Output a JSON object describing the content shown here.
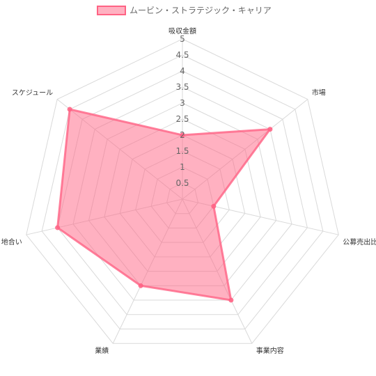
{
  "chart_data": {
    "type": "radar",
    "title": "",
    "categories": [
      "吸収金額",
      "市場",
      "公募売出比",
      "事業内容",
      "業績",
      "地合い",
      "スケジュール"
    ],
    "series": [
      {
        "name": "ムービン・ストラテジック・キャリア",
        "values": [
          2,
          3.5,
          1,
          3.5,
          3,
          4,
          4.5
        ],
        "color": "#ff6384"
      }
    ],
    "rlim": [
      0,
      5
    ],
    "ticks": [
      "0.5",
      "1",
      "1.5",
      "2",
      "2.5",
      "3",
      "3.5",
      "4",
      "4.5",
      "5"
    ],
    "tick_values": [
      0.5,
      1,
      1.5,
      2,
      2.5,
      3,
      3.5,
      4,
      4.5,
      5
    ],
    "legend_position": "top",
    "grid": true
  }
}
